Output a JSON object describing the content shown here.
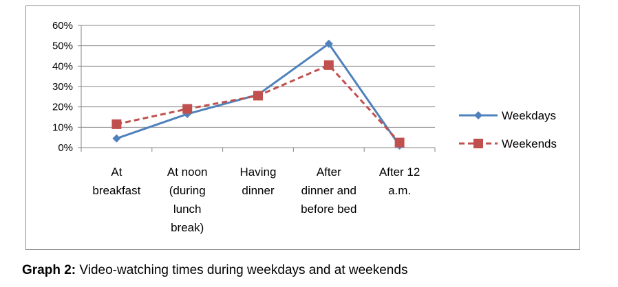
{
  "chart_data": {
    "type": "line",
    "title": "",
    "xlabel": "",
    "ylabel": "",
    "categories": [
      [
        "At",
        "breakfast"
      ],
      [
        "At noon",
        "(during",
        "lunch",
        "break)"
      ],
      [
        "Having",
        "dinner"
      ],
      [
        "After",
        "dinner and",
        "before bed"
      ],
      [
        "After 12",
        "a.m."
      ]
    ],
    "yticks": [
      "0%",
      "10%",
      "20%",
      "30%",
      "40%",
      "50%",
      "60%"
    ],
    "ylim": [
      0,
      60
    ],
    "grid": "horizontal",
    "legend_position": "right",
    "series": [
      {
        "name": "Weekdays",
        "values": [
          4.5,
          16.5,
          26,
          51,
          1
        ],
        "color": "#4f81bd",
        "marker": "diamond",
        "line": "solid"
      },
      {
        "name": "Weekends",
        "values": [
          11.5,
          19,
          25.5,
          40.5,
          2.5
        ],
        "color": "#c0504d",
        "marker": "square",
        "line": "dashed"
      }
    ]
  },
  "caption": {
    "label": "Graph 2:",
    "text": " Video-watching times during weekdays and at weekends"
  }
}
